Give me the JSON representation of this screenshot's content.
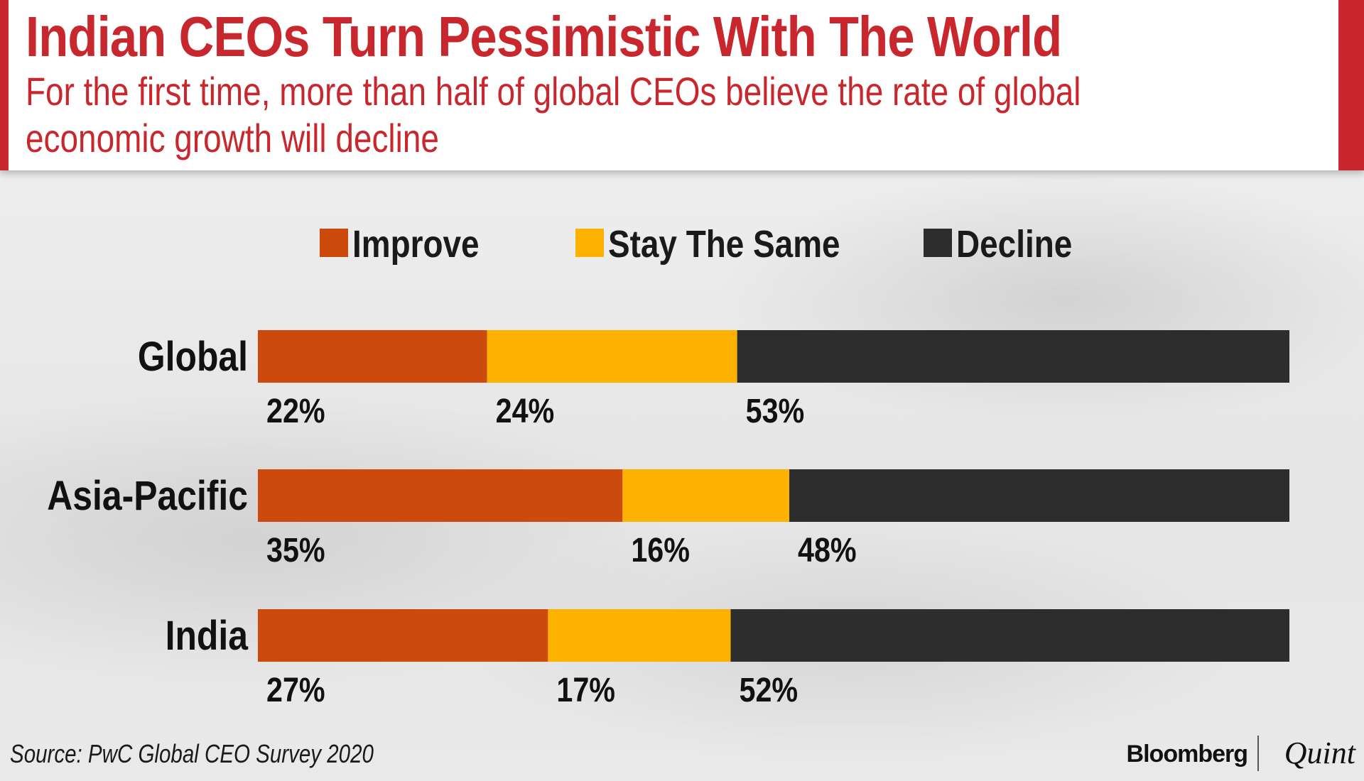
{
  "header": {
    "title": "Indian CEOs Turn Pessimistic With The World",
    "subtitle": "For the first time, more than half of global CEOs believe the rate of global economic growth will decline"
  },
  "colors": {
    "improve": "#cc4b0c",
    "same": "#fdb100",
    "decline": "#2d2d2d",
    "accent": "#c8272d"
  },
  "chart_data": {
    "type": "bar",
    "orientation": "horizontal",
    "stacked": true,
    "title": "Indian CEOs Turn Pessimistic With The World",
    "categories": [
      "Global",
      "Asia-Pacific",
      "India"
    ],
    "series": [
      {
        "name": "Improve",
        "values": [
          22,
          35,
          27
        ],
        "labels": [
          "22%",
          "35%",
          "27%"
        ]
      },
      {
        "name": "Stay The Same",
        "values": [
          24,
          16,
          17
        ],
        "labels": [
          "24%",
          "16%",
          "17%"
        ]
      },
      {
        "name": "Decline",
        "values": [
          53,
          48,
          52
        ],
        "labels": [
          "53%",
          "48%",
          "52%"
        ]
      }
    ],
    "legend_position": "top",
    "xlabel": "",
    "ylabel": ""
  },
  "footer": {
    "source": "Source: PwC Global CEO Survey 2020",
    "brand_bloomberg": "Bloomberg",
    "brand_quint": "Quint"
  }
}
